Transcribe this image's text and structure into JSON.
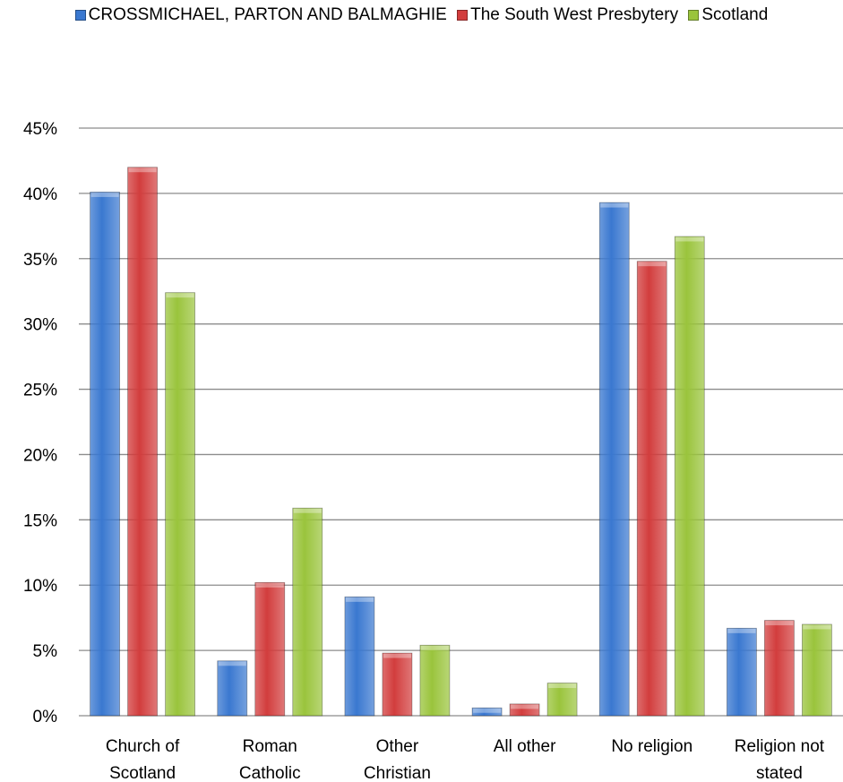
{
  "colors": {
    "series": [
      "#3a78d0",
      "#d23d3d",
      "#9ac43c"
    ],
    "grid": "#8c8c8c"
  },
  "chart_data": {
    "type": "bar",
    "categories": [
      [
        "Church of",
        "Scotland"
      ],
      [
        "Roman",
        "Catholic"
      ],
      [
        "Other",
        "Christian"
      ],
      [
        "All other"
      ],
      [
        "No religion"
      ],
      [
        "Religion not",
        "stated"
      ]
    ],
    "series": [
      {
        "name": "CROSSMICHAEL, PARTON AND BALMAGHIE",
        "values": [
          40.1,
          4.2,
          9.1,
          0.6,
          39.3,
          6.7
        ]
      },
      {
        "name": "The South West Presbytery",
        "values": [
          42.0,
          10.2,
          4.8,
          0.9,
          34.8,
          7.3
        ]
      },
      {
        "name": "Scotland",
        "values": [
          32.4,
          15.9,
          5.4,
          2.5,
          36.7,
          7.0
        ]
      }
    ],
    "ylim": [
      0,
      45
    ],
    "yticks": [
      "0%",
      "5%",
      "10%",
      "15%",
      "20%",
      "25%",
      "30%",
      "35%",
      "40%",
      "45%"
    ],
    "grid": true,
    "legend_position": "top"
  }
}
